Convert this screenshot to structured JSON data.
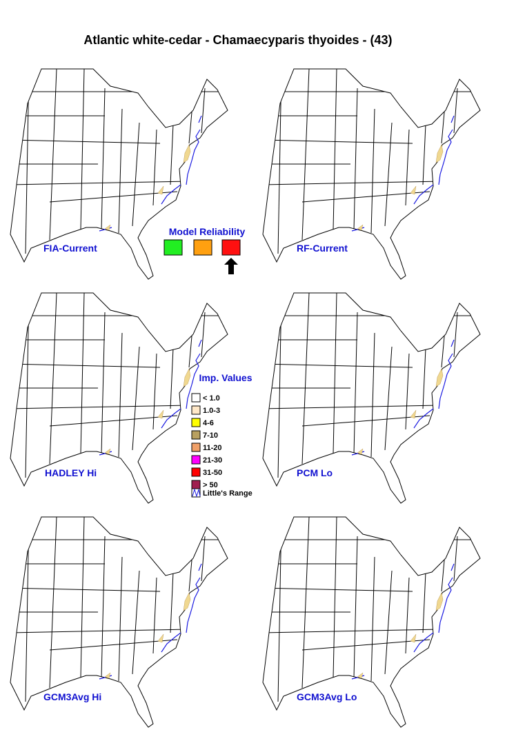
{
  "header": {
    "title": "Atlantic white-cedar - Chamaecyparis thyoides - (43)"
  },
  "panels": [
    {
      "label": "FIA-Current"
    },
    {
      "label": "RF-Current"
    },
    {
      "label": "HADLEY Hi"
    },
    {
      "label": "PCM Lo"
    },
    {
      "label": "GCM3Avg Hi"
    },
    {
      "label": "GCM3Avg Lo"
    }
  ],
  "reliability": {
    "title": "Model Reliability"
  },
  "legend": {
    "title": "Imp. Values",
    "items": [
      "< 1.0",
      "1.0-3",
      "4-6",
      "7-10",
      "11-20",
      "21-30",
      "31-50",
      "> 50",
      "Little's Range"
    ]
  }
}
